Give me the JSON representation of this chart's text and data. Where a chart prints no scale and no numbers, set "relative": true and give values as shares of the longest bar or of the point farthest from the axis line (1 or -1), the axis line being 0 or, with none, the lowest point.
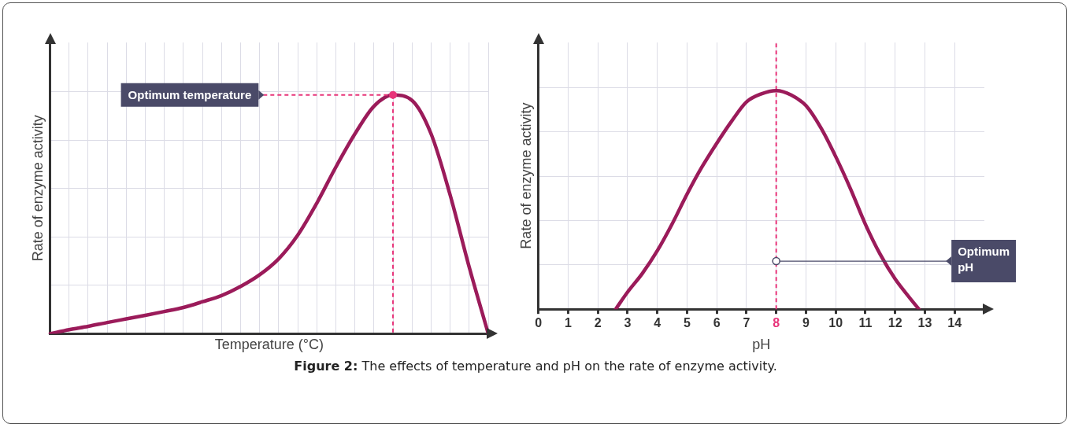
{
  "chart_data": [
    {
      "type": "line",
      "relative": true,
      "xlabel": "Temperature (°C)",
      "ylabel": "Rate of enzyme activity",
      "categories": [
        null,
        null,
        null,
        null,
        null,
        null,
        null,
        null,
        null,
        null,
        null,
        null,
        null,
        null,
        null,
        null,
        null,
        null,
        null,
        null,
        null,
        null,
        null,
        null
      ],
      "series": [
        {
          "color": "#9b1b5a",
          "values": [
            0,
            0.017,
            0.031,
            0.047,
            0.062,
            0.077,
            0.093,
            0.11,
            0.134,
            0.16,
            0.198,
            0.247,
            0.314,
            0.413,
            0.547,
            0.698,
            0.837,
            0.953,
            1,
            0.977,
            0.837,
            0.581,
            0.279,
            0
          ]
        }
      ],
      "annotations": [
        "Optimum temperature"
      ],
      "grid": true,
      "marker": "none",
      "line_style": "solid",
      "legend": false,
      "tick_labels": false
    },
    {
      "type": "line",
      "relative": true,
      "xlabel": "pH",
      "ylabel": "Rate of enzyme activity",
      "xlim": [
        0,
        15
      ],
      "xticks": [
        0,
        1,
        2,
        3,
        4,
        5,
        6,
        7,
        8,
        9,
        10,
        11,
        12,
        13,
        14
      ],
      "series": [
        {
          "color": "#9b1b5a",
          "x": [
            2.6,
            3,
            3.5,
            4,
            4.5,
            5,
            5.5,
            6,
            6.5,
            7,
            7.5,
            8,
            8.5,
            9,
            9.5,
            10,
            10.5,
            11,
            11.5,
            12,
            12.5,
            12.8
          ],
          "values": [
            0,
            0.078,
            0.164,
            0.267,
            0.39,
            0.526,
            0.65,
            0.759,
            0.86,
            0.948,
            0.985,
            1,
            0.98,
            0.931,
            0.83,
            0.698,
            0.55,
            0.388,
            0.25,
            0.138,
            0.05,
            0
          ]
        }
      ],
      "ref_lines": [
        {
          "axis": "x",
          "value": 8,
          "color": "#e8347a",
          "line_style": "dashed"
        }
      ],
      "annotations": [
        {
          "text": "Optimum pH",
          "x": 8,
          "y": 0.22
        },
        "Figure 2: The effects of temperature and pH on the rate of enzyme activity."
      ],
      "grid": true,
      "marker": "none",
      "line_style": "solid",
      "legend": false,
      "tick_labels": "x"
    }
  ]
}
